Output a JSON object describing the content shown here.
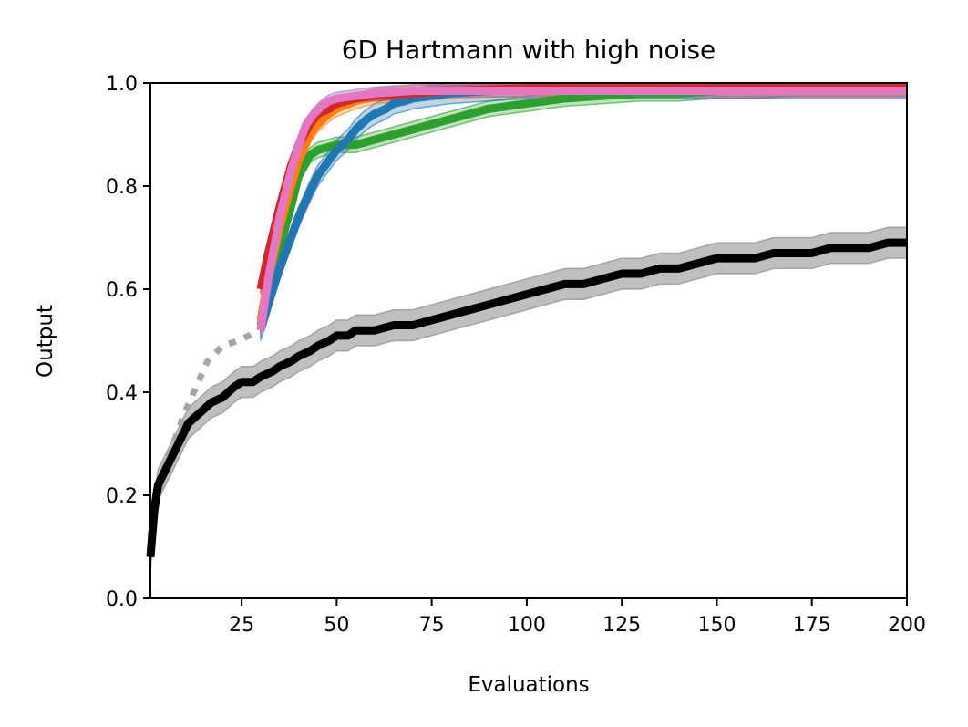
{
  "chart_data": {
    "type": "line",
    "title": "6D Hartmann with high noise",
    "xlabel": "Evaluations",
    "ylabel": "Output",
    "xlim": [
      1,
      200
    ],
    "ylim": [
      0,
      1.0
    ],
    "xticks": [
      25,
      50,
      75,
      100,
      125,
      150,
      175,
      200
    ],
    "xtick_labels": [
      "25",
      "50",
      "75",
      "100",
      "125",
      "150",
      "175",
      "200"
    ],
    "yticks": [
      0,
      0.2,
      0.4,
      0.6,
      0.8,
      1.0
    ],
    "ytick_labels": [
      "0.0",
      "0.2",
      "0.4",
      "0.6",
      "0.8",
      "1.0"
    ],
    "grid": false,
    "legend": null,
    "series": [
      {
        "color": "#a6a6a6",
        "style": "dotted",
        "x": [
          1,
          3,
          5,
          7,
          10,
          13,
          16,
          20,
          24,
          27,
          29
        ],
        "y": [
          0.12,
          0.2,
          0.26,
          0.3,
          0.36,
          0.41,
          0.46,
          0.49,
          0.5,
          0.51,
          0.52
        ]
      },
      {
        "color": "#000000",
        "style": "solid",
        "band_color": "#808080",
        "x": [
          1,
          2,
          3,
          5,
          7,
          9,
          11,
          14,
          17,
          20,
          23,
          25,
          28,
          30,
          33,
          35,
          38,
          40,
          43,
          45,
          48,
          50,
          53,
          55,
          58,
          60,
          65,
          70,
          75,
          80,
          85,
          90,
          95,
          100,
          105,
          110,
          115,
          120,
          125,
          130,
          135,
          140,
          145,
          150,
          155,
          160,
          165,
          170,
          175,
          180,
          185,
          190,
          195,
          200
        ],
        "y": [
          0.08,
          0.17,
          0.22,
          0.25,
          0.28,
          0.31,
          0.34,
          0.36,
          0.38,
          0.39,
          0.41,
          0.42,
          0.42,
          0.43,
          0.44,
          0.45,
          0.46,
          0.47,
          0.48,
          0.49,
          0.5,
          0.51,
          0.51,
          0.52,
          0.52,
          0.52,
          0.53,
          0.53,
          0.54,
          0.55,
          0.56,
          0.57,
          0.58,
          0.59,
          0.6,
          0.61,
          0.61,
          0.62,
          0.63,
          0.63,
          0.64,
          0.64,
          0.65,
          0.66,
          0.66,
          0.66,
          0.67,
          0.67,
          0.67,
          0.68,
          0.68,
          0.68,
          0.69,
          0.69
        ],
        "band": 0.03
      },
      {
        "color": "#2ca02c",
        "style": "solid",
        "band_color": "#2ca02c",
        "x": [
          30,
          32,
          35,
          38,
          40,
          43,
          45,
          50,
          55,
          60,
          65,
          70,
          75,
          80,
          85,
          90,
          95,
          100,
          110,
          120,
          130,
          140,
          150,
          160,
          170,
          180,
          190,
          200
        ],
        "y": [
          0.53,
          0.6,
          0.68,
          0.76,
          0.82,
          0.86,
          0.87,
          0.88,
          0.88,
          0.89,
          0.9,
          0.91,
          0.92,
          0.93,
          0.94,
          0.95,
          0.955,
          0.96,
          0.97,
          0.975,
          0.98,
          0.98,
          0.985,
          0.985,
          0.99,
          0.99,
          0.99,
          0.99
        ],
        "band": 0.015
      },
      {
        "color": "#1f77b4",
        "style": "solid",
        "band_color": "#1f77b4",
        "x": [
          30,
          32,
          35,
          38,
          40,
          43,
          45,
          48,
          50,
          53,
          55,
          58,
          60,
          63,
          65,
          68,
          70,
          75,
          80,
          90,
          100,
          120,
          140,
          160,
          180,
          200
        ],
        "y": [
          0.52,
          0.57,
          0.64,
          0.7,
          0.74,
          0.79,
          0.82,
          0.85,
          0.87,
          0.89,
          0.91,
          0.93,
          0.94,
          0.95,
          0.96,
          0.965,
          0.97,
          0.975,
          0.98,
          0.985,
          0.99,
          0.99,
          0.99,
          0.99,
          0.99,
          0.99
        ],
        "band": 0.02
      },
      {
        "color": "#ff7f0e",
        "style": "solid",
        "band_color": "#ff7f0e",
        "x": [
          30,
          32,
          35,
          38,
          40,
          43,
          45,
          48,
          50,
          55,
          60,
          70,
          80,
          100,
          120,
          150,
          200
        ],
        "y": [
          0.54,
          0.62,
          0.72,
          0.8,
          0.85,
          0.9,
          0.92,
          0.94,
          0.95,
          0.965,
          0.975,
          0.98,
          0.985,
          0.99,
          0.99,
          0.99,
          0.99
        ],
        "band": 0.015
      },
      {
        "color": "#d62728",
        "style": "solid",
        "band_color": "#d62728",
        "x": [
          30,
          32,
          35,
          38,
          40,
          43,
          45,
          48,
          50,
          55,
          60,
          70,
          80,
          100,
          120,
          150,
          200
        ],
        "y": [
          0.6,
          0.67,
          0.76,
          0.84,
          0.88,
          0.92,
          0.94,
          0.95,
          0.96,
          0.97,
          0.975,
          0.98,
          0.985,
          0.99,
          0.99,
          0.99,
          0.99
        ],
        "band": 0.01
      },
      {
        "color": "#e377c2",
        "style": "solid",
        "band_color": "#9467bd",
        "x": [
          30,
          32,
          35,
          38,
          40,
          42,
          44,
          46,
          48,
          50,
          55,
          60,
          70,
          80,
          100,
          120,
          150,
          200
        ],
        "y": [
          0.52,
          0.62,
          0.74,
          0.83,
          0.88,
          0.92,
          0.94,
          0.955,
          0.965,
          0.97,
          0.975,
          0.98,
          0.985,
          0.985,
          0.985,
          0.985,
          0.985,
          0.985
        ],
        "band": 0.012
      }
    ]
  }
}
